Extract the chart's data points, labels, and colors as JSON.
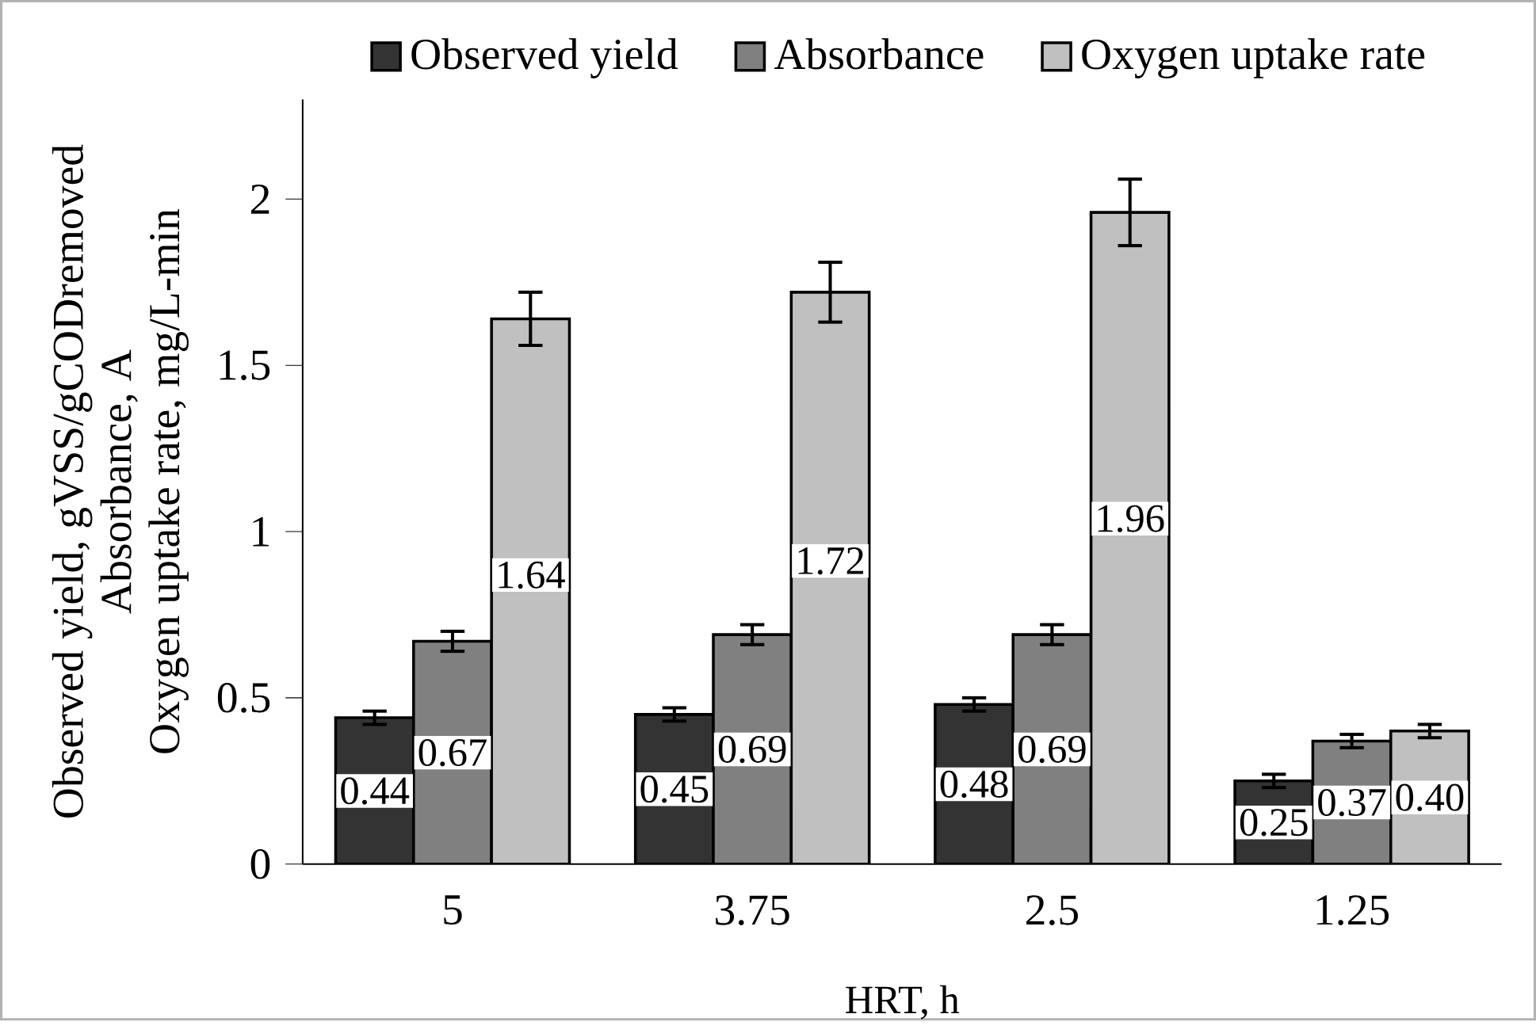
{
  "chart_data": {
    "type": "bar",
    "xlabel": "HRT, h",
    "ylabel": [
      "Observed yield, gVSS/gCODremoved",
      "Absorbance, A",
      "Oxygen uptake rate, mg/L-min"
    ],
    "categories": [
      "5",
      "3.75",
      "2.5",
      "1.25"
    ],
    "series": [
      {
        "name": "Observed yield",
        "color": "#333333",
        "values": [
          0.44,
          0.45,
          0.48,
          0.25
        ],
        "errors": [
          0.02,
          0.02,
          0.02,
          0.02
        ],
        "value_labels": [
          "0.44",
          "0.45",
          "0.48",
          "0.25"
        ]
      },
      {
        "name": "Absorbance",
        "color": "#808080",
        "values": [
          0.67,
          0.69,
          0.69,
          0.37
        ],
        "errors": [
          0.03,
          0.03,
          0.03,
          0.02
        ],
        "value_labels": [
          "0.67",
          "0.69",
          "0.69",
          "0.37"
        ]
      },
      {
        "name": "Oxygen uptake rate",
        "color": "#c0c0c0",
        "values": [
          1.64,
          1.72,
          1.96,
          0.4
        ],
        "errors": [
          0.08,
          0.09,
          0.1,
          0.02
        ],
        "value_labels": [
          "1.64",
          "1.72",
          "1.96",
          "0.40"
        ]
      }
    ],
    "ylim": [
      0,
      2.3
    ],
    "yticks": [
      0,
      0.5,
      1,
      1.5,
      2
    ],
    "legend": "top",
    "grid": false
  }
}
